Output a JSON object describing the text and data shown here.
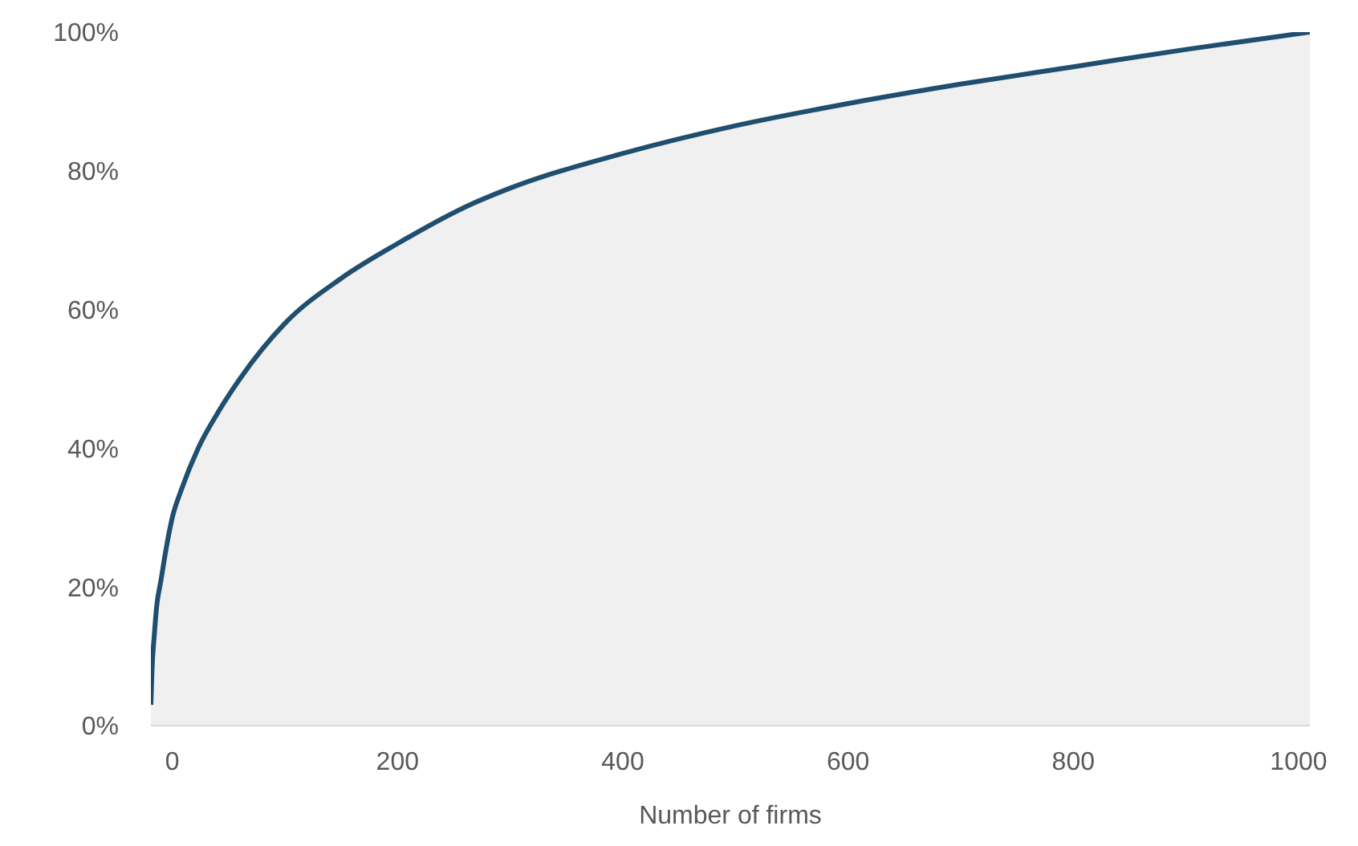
{
  "chart_data": {
    "type": "area",
    "xlabel": "Number of firms",
    "x": [
      -19,
      -18,
      -16,
      -14,
      -10,
      -6,
      0,
      8,
      23,
      40,
      60,
      100,
      150,
      200,
      263,
      300,
      400,
      500,
      600,
      700,
      800,
      900,
      1010
    ],
    "series": [
      {
        "color": "#1f4e6e",
        "values": [
          3,
          8,
          13,
          17,
          21,
          25,
          30,
          34,
          40,
          45,
          50,
          58,
          64.5,
          69.5,
          75,
          77.5,
          82.5,
          86.5,
          89.7,
          92.5,
          95,
          97.5,
          100
        ]
      }
    ],
    "xlim": [
      -19,
      1010
    ],
    "xticks": [
      0,
      200,
      400,
      600,
      800,
      1000
    ],
    "ylim": [
      0,
      100
    ],
    "yticks": [
      {
        "value": 0,
        "label": "0%"
      },
      {
        "value": 20,
        "label": "20%"
      },
      {
        "value": 40,
        "label": "40%"
      },
      {
        "value": 60,
        "label": "60%"
      },
      {
        "value": 80,
        "label": "80%"
      },
      {
        "value": 100,
        "label": "100%"
      }
    ],
    "grid": false,
    "legend": false
  }
}
